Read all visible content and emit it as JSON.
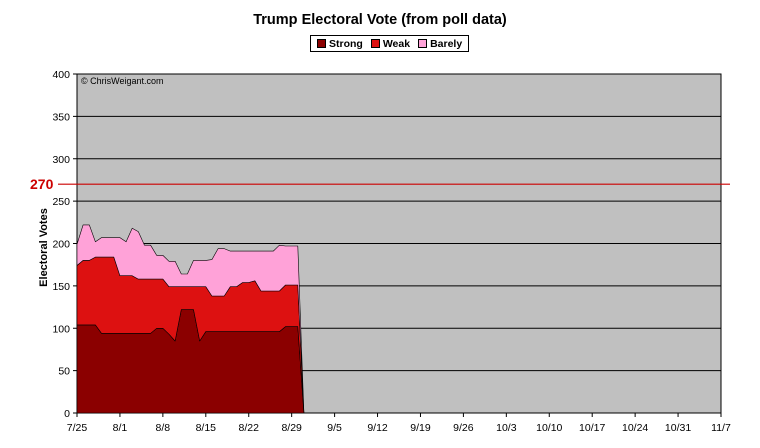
{
  "chart_data": {
    "type": "area",
    "stacked": true,
    "title": "Trump Electoral Vote (from poll data)",
    "ylabel": "Electoral Votes",
    "xlabel": "",
    "ylim": [
      0,
      400
    ],
    "yticks": [
      0,
      50,
      100,
      150,
      200,
      250,
      300,
      350,
      400
    ],
    "x_tick_labels": [
      "7/25",
      "8/1",
      "8/8",
      "8/15",
      "8/22",
      "8/29",
      "9/5",
      "9/12",
      "9/19",
      "9/26",
      "10/3",
      "10/10",
      "10/17",
      "10/24",
      "10/31",
      "11/7"
    ],
    "x_days": [
      0,
      1,
      2,
      3,
      4,
      5,
      6,
      7,
      8,
      9,
      10,
      11,
      12,
      13,
      14,
      15,
      16,
      17,
      18,
      19,
      20,
      21,
      22,
      23,
      24,
      25,
      26,
      27,
      28,
      29,
      30,
      31,
      32,
      33,
      34,
      35,
      36,
      37,
      38,
      39,
      40,
      41,
      42,
      43,
      44
    ],
    "series": [
      {
        "name": "Strong",
        "color": "#8b0000",
        "values": [
          104,
          104,
          104,
          104,
          94,
          94,
          94,
          94,
          94,
          94,
          94,
          94,
          94,
          100,
          100,
          93,
          85,
          122,
          122,
          122,
          85,
          96,
          96,
          96,
          96,
          96,
          96,
          96,
          96,
          96,
          96,
          96,
          96,
          96,
          102,
          102,
          102,
          0,
          0,
          0,
          0,
          0,
          0,
          0,
          0
        ]
      },
      {
        "name": "Weak",
        "color": "#dd1111",
        "values": [
          70,
          76,
          76,
          80,
          90,
          90,
          90,
          68,
          68,
          68,
          64,
          64,
          64,
          58,
          58,
          56,
          64,
          27,
          27,
          27,
          64,
          53,
          42,
          42,
          42,
          53,
          53,
          58,
          58,
          60,
          48,
          48,
          48,
          48,
          49,
          49,
          49,
          0,
          0,
          0,
          0,
          0,
          0,
          0,
          0
        ]
      },
      {
        "name": "Barely",
        "color": "#ffa2d8",
        "values": [
          25,
          42,
          42,
          18,
          23,
          23,
          23,
          45,
          40,
          56,
          56,
          40,
          40,
          28,
          28,
          30,
          30,
          15,
          15,
          31,
          31,
          31,
          43,
          56,
          56,
          42,
          42,
          37,
          37,
          35,
          47,
          47,
          47,
          54,
          46,
          46,
          46,
          0,
          0,
          0,
          0,
          0,
          0,
          0,
          0
        ]
      }
    ],
    "threshold": {
      "value": 270,
      "label": "270",
      "color": "#cc0000"
    },
    "plot_background": "#c0c0c0",
    "grid": true,
    "legend_position": "top-center",
    "annotation": "© ChrisWeigant.com"
  }
}
